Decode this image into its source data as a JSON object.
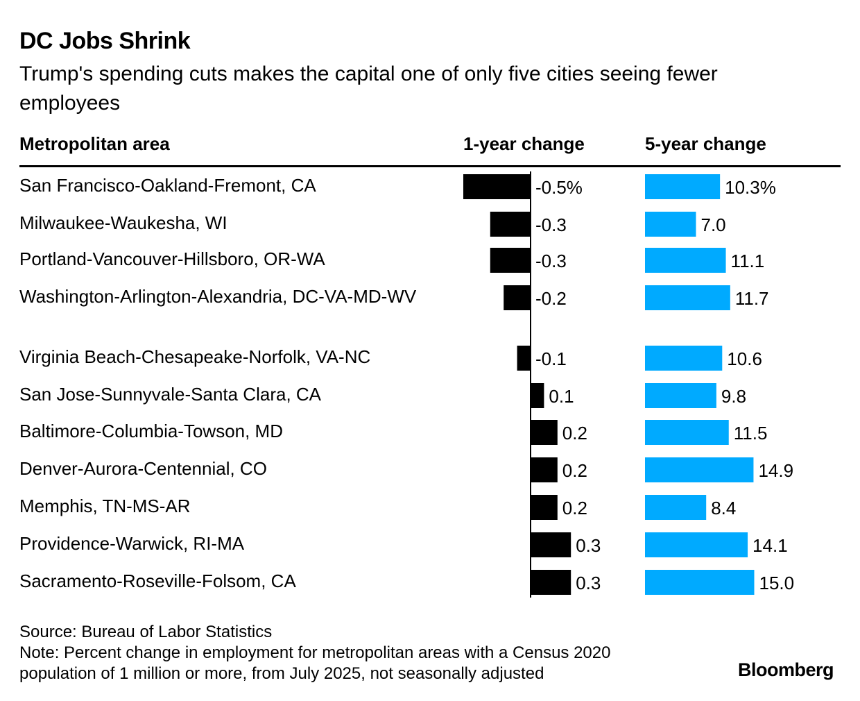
{
  "title": "DC Jobs Shrink",
  "subtitle": "Trump's spending cuts makes the capital one of only five cities seeing fewer employees",
  "headers": {
    "area": "Metropolitan area",
    "one_year": "1-year change",
    "five_year": "5-year change"
  },
  "colors": {
    "one_year_bar": "#000000",
    "five_year_bar": "#00aaff",
    "text": "#000000"
  },
  "chart_data": {
    "type": "bar",
    "categories": [
      "San Francisco-Oakland-Fremont, CA",
      "Milwaukee-Waukesha, WI",
      "Portland-Vancouver-Hillsboro, OR-WA",
      "Washington-Arlington-Alexandria, DC-VA-MD-WV",
      "Virginia Beach-Chesapeake-Norfolk, VA-NC",
      "San Jose-Sunnyvale-Santa Clara, CA",
      "Baltimore-Columbia-Towson, MD",
      "Denver-Aurora-Centennial, CO",
      "Memphis, TN-MS-AR",
      "Providence-Warwick, RI-MA",
      "Sacramento-Roseville-Folsom, CA"
    ],
    "series": [
      {
        "name": "1-year change",
        "values": [
          -0.5,
          -0.3,
          -0.3,
          -0.2,
          -0.1,
          0.1,
          0.2,
          0.2,
          0.2,
          0.3,
          0.3
        ],
        "labels": [
          "-0.5%",
          "-0.3",
          "-0.3",
          "-0.2",
          "-0.1",
          "0.1",
          "0.2",
          "0.2",
          "0.2",
          "0.3",
          "0.3"
        ]
      },
      {
        "name": "5-year change",
        "values": [
          10.3,
          7.0,
          11.1,
          11.7,
          10.6,
          9.8,
          11.5,
          14.9,
          8.4,
          14.1,
          15.0
        ],
        "labels": [
          "10.3%",
          "7.0",
          "11.1",
          "11.7",
          "10.6",
          "9.8",
          "11.5",
          "14.9",
          "8.4",
          "14.1",
          "15.0"
        ]
      }
    ],
    "unit": "%"
  },
  "footer": {
    "source": "Source: Bureau of Labor Statistics",
    "note": "Note: Percent change in employment for metropolitan areas with a Census 2020 population of 1 million or more, from July 2025, not seasonally adjusted"
  },
  "brand": "Bloomberg"
}
